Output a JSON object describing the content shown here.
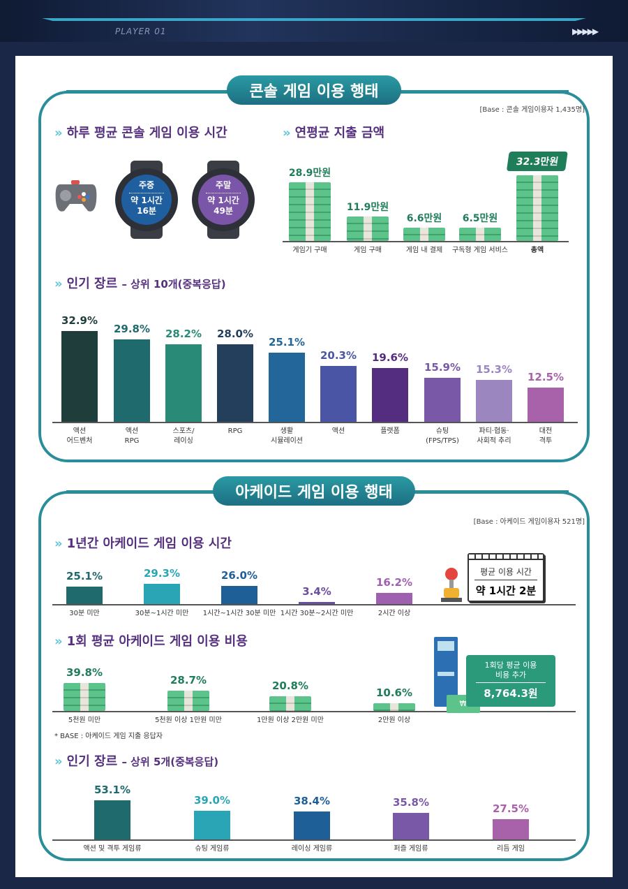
{
  "header": {
    "player": "PLAYER 01",
    "arrows": "▶▶▶▶▶"
  },
  "console": {
    "title": "콘솔 게임 이용 행태",
    "base": "[Base : 콘솔 게임이용자 1,435명]",
    "daily": {
      "heading": "하루 평균 콘솔 게임 이용 시간",
      "weekday": {
        "label": "주중",
        "value1": "약 1시간",
        "value2": "16분"
      },
      "weekend": {
        "label": "주말",
        "value1": "약 1시간",
        "value2": "49분"
      },
      "icon": "gamepad-icon"
    },
    "spend_heading": "연평균 지출 금액",
    "genre_heading": "인기 장르",
    "genre_sub": "– 상위 10개(중복응답)"
  },
  "arcade": {
    "title": "아케이드 게임 이용 행태",
    "base": "[Base : 아케이드 게임이용자 521명]",
    "time_heading": "1년간 아케이드 게임 이용 시간",
    "avg_time": {
      "label": "평균 이용 시간",
      "value": "약 1시간 2분"
    },
    "cost_heading": "1회 평균 아케이드 게임 이용 비용",
    "avg_cost": {
      "label1": "1회당 평균 이용",
      "label2": "비용 추가",
      "value": "8,764.3원"
    },
    "note": "* BASE : 아케이드 게임 지출 응답자",
    "genre_heading": "인기 장르",
    "genre_sub": "– 상위 5개(중복응답)"
  },
  "chart_data": [
    {
      "id": "spend",
      "type": "bar",
      "unit": "만원",
      "categories": [
        "게임기 구매",
        "게임 구매",
        "게임 내 결제",
        "구독형 게임 서비스",
        "총액"
      ],
      "values": [
        28.9,
        11.9,
        6.6,
        6.5,
        32.3
      ],
      "labels": [
        "28.9만원",
        "11.9만원",
        "6.6만원",
        "6.5만원",
        "32.3만원"
      ]
    },
    {
      "id": "console_genre",
      "type": "bar",
      "unit": "%",
      "categories": [
        "액션\n어드벤처",
        "액션\nRPG",
        "스포츠/\n레이싱",
        "RPG",
        "생활\n시뮬레이션",
        "액션",
        "플랫폼",
        "슈팅\n(FPS/TPS)",
        "파티·협동·\n사회적 추리",
        "대전\n격투"
      ],
      "values": [
        32.9,
        29.8,
        28.2,
        28.0,
        25.1,
        20.3,
        19.6,
        15.9,
        15.3,
        12.5
      ],
      "labels": [
        "32.9%",
        "29.8%",
        "28.2%",
        "28.0%",
        "25.1%",
        "20.3%",
        "19.6%",
        "15.9%",
        "15.3%",
        "12.5%"
      ],
      "colors": [
        "#1f3d3a",
        "#1e6a6c",
        "#2a8a78",
        "#243f5c",
        "#22669a",
        "#4a55a6",
        "#542c80",
        "#7a58a8",
        "#9c86c0",
        "#a862aa"
      ]
    },
    {
      "id": "arcade_time",
      "type": "bar",
      "unit": "%",
      "categories": [
        "30분 미만",
        "30분~1시간 미만",
        "1시간~1시간 30분 미만",
        "1시간 30분~2시간 미만",
        "2시간 이상"
      ],
      "values": [
        25.1,
        29.3,
        26.0,
        3.4,
        16.2
      ],
      "labels": [
        "25.1%",
        "29.3%",
        "26.0%",
        "3.4%",
        "16.2%"
      ],
      "colors": [
        "#1e6a6c",
        "#2aa5b5",
        "#1f5f98",
        "#6a4ea0",
        "#a060b0"
      ]
    },
    {
      "id": "arcade_cost",
      "type": "bar",
      "unit": "%",
      "categories": [
        "5천원 미만",
        "5천원 이상 1만원 미만",
        "1만원 이상 2만원 미만",
        "2만원 이상"
      ],
      "values": [
        39.8,
        28.7,
        20.8,
        10.6
      ],
      "labels": [
        "39.8%",
        "28.7%",
        "20.8%",
        "10.6%"
      ]
    },
    {
      "id": "arcade_genre",
      "type": "bar",
      "unit": "%",
      "categories": [
        "액션 및 격투 게임류",
        "슈팅 게임류",
        "레이싱 게임류",
        "퍼즐 게임류",
        "리듬 게임"
      ],
      "values": [
        53.1,
        39.0,
        38.4,
        35.8,
        27.5
      ],
      "labels": [
        "53.1%",
        "39.0%",
        "38.4%",
        "35.8%",
        "27.5%"
      ],
      "colors": [
        "#1e6a6c",
        "#2aa5b5",
        "#1f5f98",
        "#7a58a8",
        "#a862aa"
      ]
    }
  ]
}
